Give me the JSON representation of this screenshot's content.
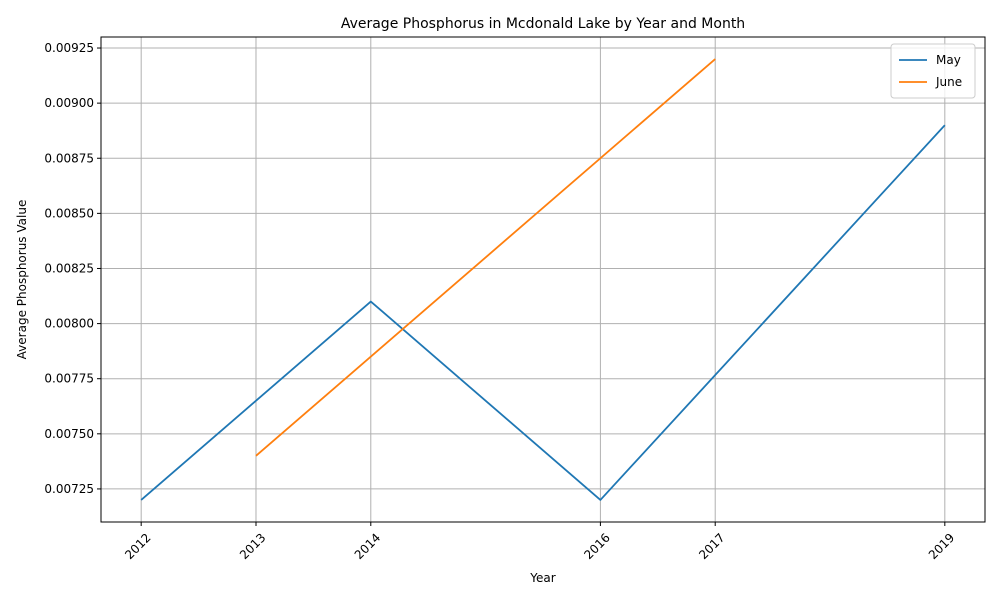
{
  "chart_data": {
    "type": "line",
    "title": "Average Phosphorus in Mcdonald Lake by Year and Month",
    "xlabel": "Year",
    "ylabel": "Average Phosphorus Value",
    "xlim": [
      2011.65,
      2019.35
    ],
    "ylim": [
      0.0071,
      0.0093
    ],
    "x_ticks": [
      2012,
      2013,
      2014,
      2016,
      2017,
      2019
    ],
    "x_tick_labels": [
      "2012",
      "2013",
      "2014",
      "2016",
      "2017",
      "2019"
    ],
    "y_ticks": [
      0.00725,
      0.0075,
      0.00775,
      0.008,
      0.00825,
      0.0085,
      0.00875,
      0.009,
      0.00925
    ],
    "y_tick_labels": [
      "0.00725",
      "0.00750",
      "0.00775",
      "0.00800",
      "0.00825",
      "0.00850",
      "0.00875",
      "0.00900",
      "0.00925"
    ],
    "grid": true,
    "legend_position": "top-right",
    "series": [
      {
        "name": "May",
        "color": "#1f77b4",
        "points": [
          [
            2012,
            0.0072
          ],
          [
            2014,
            0.0081
          ],
          [
            2016,
            0.0072
          ],
          [
            2019,
            0.0089
          ]
        ]
      },
      {
        "name": "June",
        "color": "#ff7f0e",
        "points": [
          [
            2013,
            0.0074
          ],
          [
            2017,
            0.0092
          ]
        ]
      }
    ]
  }
}
